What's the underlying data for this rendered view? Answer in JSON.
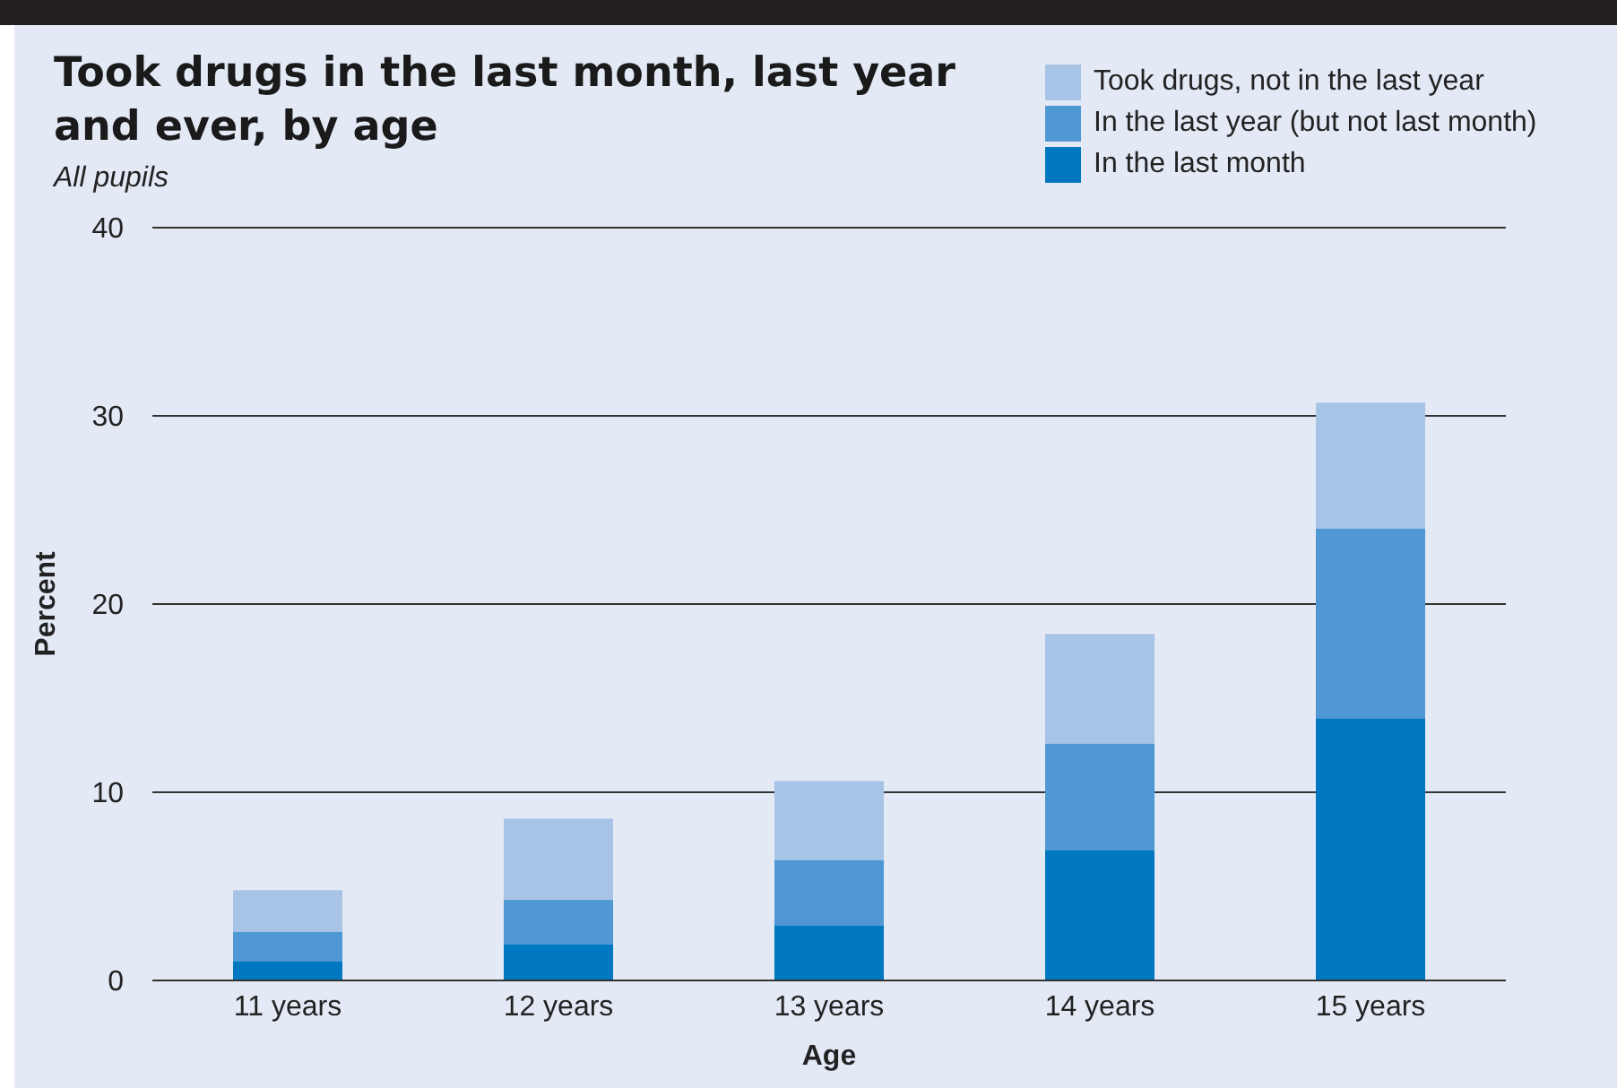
{
  "chart_data": {
    "type": "bar",
    "title": "Took drugs in the last month, last year and ever, by age",
    "subtitle": "All pupils",
    "xlabel": "Age",
    "ylabel": "Percent",
    "categories": [
      "11 years",
      "12 years",
      "13 years",
      "14 years",
      "15 years"
    ],
    "stacked": true,
    "series": [
      {
        "name": "In the last month",
        "color": "#0077c1",
        "values": [
          1.0,
          1.9,
          2.9,
          6.9,
          13.9
        ]
      },
      {
        "name": "In the last year (but not last month)",
        "color": "#4f98d3",
        "values": [
          1.6,
          2.4,
          3.5,
          5.7,
          10.1
        ]
      },
      {
        "name": "Took drugs, not in the last year",
        "color": "#a7c3e6",
        "values": [
          2.2,
          4.3,
          4.2,
          5.8,
          6.7
        ]
      }
    ],
    "ylim": [
      0,
      40
    ],
    "yticks": [
      0,
      10,
      20,
      30,
      40
    ],
    "grid": "y",
    "legend": "top right"
  }
}
